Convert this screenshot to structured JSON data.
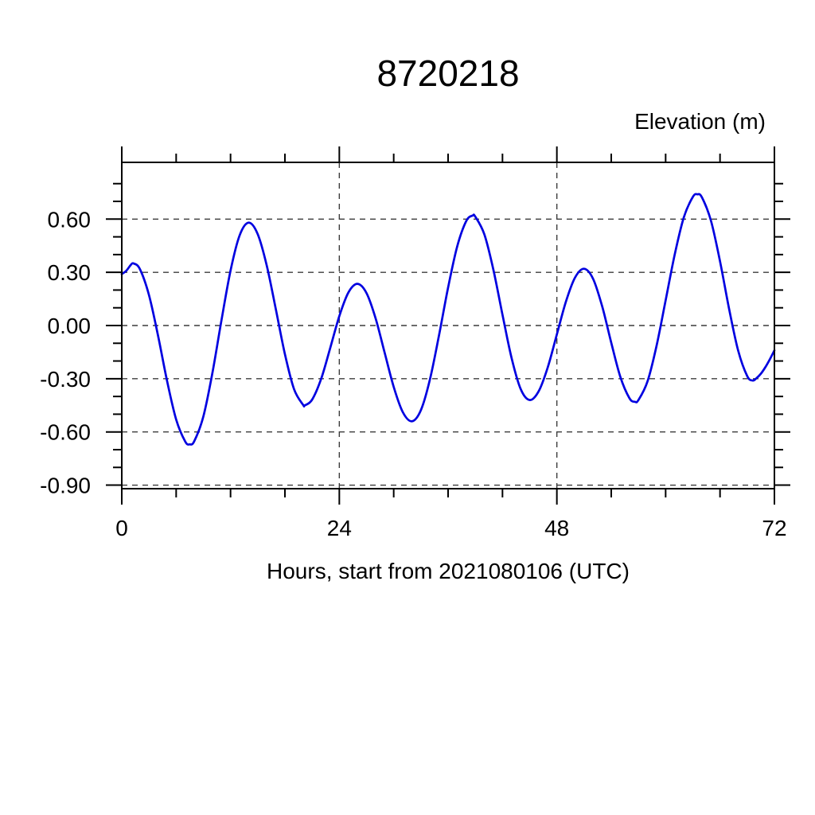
{
  "chart_data": {
    "type": "line",
    "title": "8720218",
    "ylabel": "Elevation (m)",
    "xlabel": "Hours, start from 2021080106 (UTC)",
    "xlim": [
      0,
      72
    ],
    "ylim": [
      -0.92,
      0.92
    ],
    "x_major_ticks": [
      0,
      24,
      48,
      72
    ],
    "x_tick_labels": [
      "0",
      "24",
      "48",
      "72"
    ],
    "x_minor_step": 6,
    "y_major_ticks": [
      0.6,
      0.3,
      0.0,
      -0.3,
      -0.6,
      -0.9
    ],
    "y_tick_labels": [
      "0.60",
      "0.30",
      "0.00",
      "-0.30",
      "-0.60",
      "-0.90"
    ],
    "y_minor_step": 0.1,
    "grid": "dashed-at-major-ticks",
    "legend": "none",
    "line_color": "#0000e0",
    "frame_color": "#000000",
    "grid_color": "#3c3c3c",
    "series": [
      {
        "name": "elevation",
        "points": [
          [
            0,
            0.29
          ],
          [
            0.5,
            0.309
          ],
          [
            1,
            0.342
          ],
          [
            1.3,
            0.35
          ],
          [
            2,
            0.318
          ],
          [
            3,
            0.172
          ],
          [
            4,
            -0.057
          ],
          [
            5,
            -0.313
          ],
          [
            6,
            -0.53
          ],
          [
            7,
            -0.654
          ],
          [
            7.5,
            -0.67
          ],
          [
            8,
            -0.652
          ],
          [
            9,
            -0.513
          ],
          [
            10,
            -0.267
          ],
          [
            11,
            0.03
          ],
          [
            12,
            0.31
          ],
          [
            13,
            0.508
          ],
          [
            14,
            0.58
          ],
          [
            15,
            0.515
          ],
          [
            16,
            0.337
          ],
          [
            17,
            0.091
          ],
          [
            18,
            -0.162
          ],
          [
            19,
            -0.358
          ],
          [
            20,
            -0.447
          ],
          [
            20.2,
            -0.45
          ],
          [
            21,
            -0.418
          ],
          [
            22,
            -0.3
          ],
          [
            23,
            -0.126
          ],
          [
            24,
            0.053
          ],
          [
            25,
            0.186
          ],
          [
            26,
            0.235
          ],
          [
            27,
            0.183
          ],
          [
            28,
            0.041
          ],
          [
            29,
            -0.153
          ],
          [
            30,
            -0.346
          ],
          [
            31,
            -0.488
          ],
          [
            32,
            -0.54
          ],
          [
            33,
            -0.477
          ],
          [
            34,
            -0.303
          ],
          [
            35,
            -0.055
          ],
          [
            36,
            0.214
          ],
          [
            37,
            0.445
          ],
          [
            38,
            0.589
          ],
          [
            38.7,
            0.62
          ],
          [
            39,
            0.614
          ],
          [
            40,
            0.514
          ],
          [
            41,
            0.314
          ],
          [
            42,
            0.061
          ],
          [
            43,
            -0.182
          ],
          [
            44,
            -0.357
          ],
          [
            45,
            -0.42
          ],
          [
            46,
            -0.37
          ],
          [
            47,
            -0.235
          ],
          [
            48,
            -0.05
          ],
          [
            49,
            0.135
          ],
          [
            50,
            0.27
          ],
          [
            51,
            0.32
          ],
          [
            52,
            0.263
          ],
          [
            53,
            0.108
          ],
          [
            54,
            -0.097
          ],
          [
            55,
            -0.289
          ],
          [
            56,
            -0.409
          ],
          [
            56.6,
            -0.43
          ],
          [
            57,
            -0.42
          ],
          [
            58,
            -0.315
          ],
          [
            59,
            -0.114
          ],
          [
            60,
            0.142
          ],
          [
            61,
            0.4
          ],
          [
            62,
            0.609
          ],
          [
            63,
            0.725
          ],
          [
            63.5,
            0.74
          ],
          [
            64,
            0.723
          ],
          [
            65,
            0.591
          ],
          [
            66,
            0.362
          ],
          [
            67,
            0.094
          ],
          [
            68,
            -0.141
          ],
          [
            69,
            -0.285
          ],
          [
            69.6,
            -0.31
          ],
          [
            70,
            -0.298
          ],
          [
            70.5,
            -0.272
          ],
          [
            71,
            -0.235
          ],
          [
            71.5,
            -0.19
          ],
          [
            72,
            -0.14
          ]
        ]
      }
    ]
  }
}
